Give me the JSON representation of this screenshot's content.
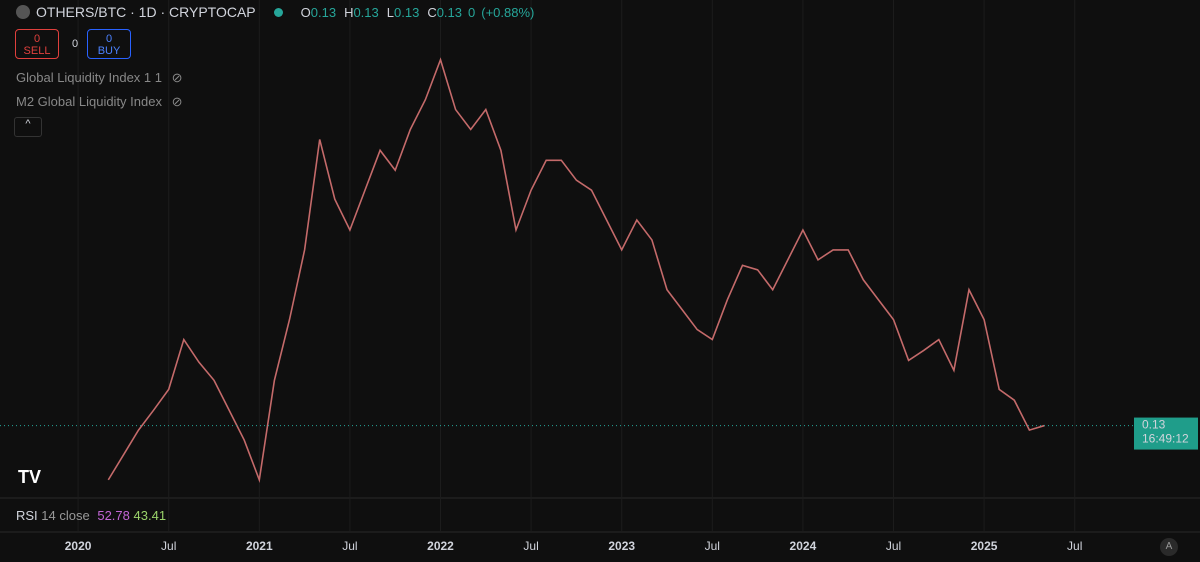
{
  "header": {
    "symbol": "OTHERS/BTC · 1D · CRYPTOCAP",
    "ohlc": [
      {
        "label": "O",
        "value": 0.13
      },
      {
        "label": "H",
        "value": 0.13
      },
      {
        "label": "L",
        "value": 0.13
      },
      {
        "label": "C",
        "value": 0.13
      }
    ],
    "change": "0",
    "change_pct": "(+0.88%)",
    "sell_price": "0",
    "sell": "SELL",
    "spread": "0",
    "buy_price": "0",
    "buy": "BUY"
  },
  "indicators": [
    "Global Liquidity Index 1 1",
    "M2 Global Liquidity Index"
  ],
  "rsi": {
    "name": "RSI",
    "params": "14 close",
    "value1": 52.78,
    "value2": 43.41
  },
  "chart_data": {
    "type": "line",
    "color": "#c46a6a",
    "x": [
      "2020-03",
      "2020-05",
      "2020-06",
      "2020-07",
      "2020-08",
      "2020-09",
      "2020-10",
      "2020-11",
      "2020-12",
      "2021-01",
      "2021-02",
      "2021-03",
      "2021-04",
      "2021-05",
      "2021-06",
      "2021-07",
      "2021-08",
      "2021-09",
      "2021-10",
      "2021-11",
      "2021-12",
      "2022-01",
      "2022-02",
      "2022-03",
      "2022-04",
      "2022-05",
      "2022-06",
      "2022-07",
      "2022-08",
      "2022-09",
      "2022-10",
      "2022-11",
      "2022-12",
      "2023-01",
      "2023-02",
      "2023-03",
      "2023-04",
      "2023-05",
      "2023-06",
      "2023-07",
      "2023-08",
      "2023-09",
      "2023-10",
      "2023-11",
      "2023-12",
      "2024-01",
      "2024-02",
      "2024-03",
      "2024-04",
      "2024-05",
      "2024-06",
      "2024-07",
      "2024-08",
      "2024-09",
      "2024-10",
      "2024-11",
      "2024-12",
      "2025-01",
      "2025-02",
      "2025-03",
      "2025-04",
      "2025-05"
    ],
    "values": [
      0.07,
      0.125,
      0.147,
      0.17,
      0.225,
      0.2,
      0.18,
      0.147,
      0.114,
      0.07,
      0.18,
      0.247,
      0.324,
      0.446,
      0.38,
      0.346,
      0.39,
      0.434,
      0.412,
      0.457,
      0.49,
      0.534,
      0.479,
      0.457,
      0.479,
      0.434,
      0.346,
      0.39,
      0.423,
      0.423,
      0.401,
      0.39,
      0.357,
      0.324,
      0.357,
      0.335,
      0.28,
      0.258,
      0.236,
      0.225,
      0.269,
      0.307,
      0.302,
      0.28,
      0.313,
      0.346,
      0.313,
      0.324,
      0.324,
      0.291,
      0.269,
      0.247,
      0.202,
      0.213,
      0.225,
      0.191,
      0.28,
      0.247,
      0.17,
      0.158,
      0.125,
      0.13
    ],
    "xlim": [
      "2019-12",
      "2025-10"
    ],
    "ylim": [
      0.05,
      0.6
    ],
    "xticks": [
      {
        "value": "2020-01",
        "label": "2020"
      },
      {
        "value": "2020-07",
        "label": "Jul"
      },
      {
        "value": "2021-01",
        "label": "2021"
      },
      {
        "value": "2021-07",
        "label": "Jul"
      },
      {
        "value": "2022-01",
        "label": "2022"
      },
      {
        "value": "2022-07",
        "label": "Jul"
      },
      {
        "value": "2023-01",
        "label": "2023"
      },
      {
        "value": "2023-07",
        "label": "Jul"
      },
      {
        "value": "2024-01",
        "label": "2024"
      },
      {
        "value": "2024-07",
        "label": "Jul"
      },
      {
        "value": "2025-01",
        "label": "2025"
      },
      {
        "value": "2025-07",
        "label": "Jul"
      }
    ],
    "last_price": 0.13,
    "countdown": "16:49:12"
  }
}
